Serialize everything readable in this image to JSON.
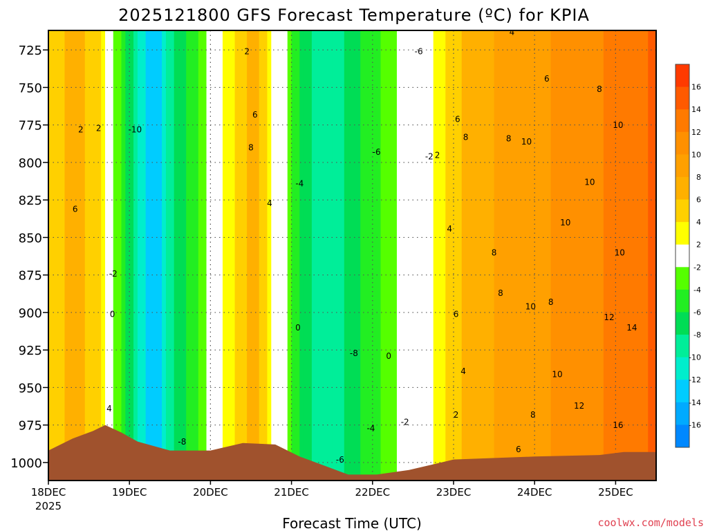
{
  "chart_data": {
    "type": "heatmap",
    "title": "2025121800 GFS Forecast Temperature (ºC) for KPIA",
    "xlabel": "Forecast Time (UTC)",
    "ylabel": "",
    "credit": "coolwx.com/models",
    "x_ticks": [
      "18DEC",
      "19DEC",
      "20DEC",
      "21DEC",
      "22DEC",
      "23DEC",
      "24DEC",
      "25DEC"
    ],
    "x_first_year": "2025",
    "xlim_days": [
      0,
      7.5
    ],
    "y_ticks": [
      725,
      750,
      775,
      800,
      825,
      850,
      875,
      900,
      925,
      950,
      975,
      1000
    ],
    "ylim_hpa": [
      1012,
      712
    ],
    "y_inverted": true,
    "grid": true,
    "colorbar": {
      "labels": [
        "16",
        "14",
        "12",
        "10",
        "8",
        "6",
        "4",
        "2",
        "-2",
        "-4",
        "-6",
        "-8",
        "-10",
        "-12",
        "-14",
        "-16"
      ],
      "colors": [
        "#ff3a00",
        "#ff5a00",
        "#ff7a00",
        "#ff9000",
        "#ffa000",
        "#ffb000",
        "#ffd000",
        "#ffff00",
        "#ffffff",
        "#55ff00",
        "#22ee22",
        "#00dd55",
        "#00ee99",
        "#00eecc",
        "#00ccff",
        "#00aaff",
        "#0088ff"
      ],
      "placement": "right"
    },
    "temperature_profile": [
      {
        "day": 0.1,
        "temp_c": 5
      },
      {
        "day": 0.35,
        "temp_c": 7
      },
      {
        "day": 0.65,
        "temp_c": 4
      },
      {
        "day": 0.85,
        "temp_c": -3
      },
      {
        "day": 1.1,
        "temp_c": -10
      },
      {
        "day": 1.3,
        "temp_c": -14
      },
      {
        "day": 1.55,
        "temp_c": -8
      },
      {
        "day": 1.85,
        "temp_c": -4
      },
      {
        "day": 2.05,
        "temp_c": 0
      },
      {
        "day": 2.35,
        "temp_c": 5
      },
      {
        "day": 2.55,
        "temp_c": 7
      },
      {
        "day": 2.8,
        "temp_c": 1
      },
      {
        "day": 3.05,
        "temp_c": -5
      },
      {
        "day": 3.35,
        "temp_c": -10
      },
      {
        "day": 3.65,
        "temp_c": -8
      },
      {
        "day": 3.95,
        "temp_c": -5
      },
      {
        "day": 4.2,
        "temp_c": -3
      },
      {
        "day": 4.45,
        "temp_c": 0
      },
      {
        "day": 4.7,
        "temp_c": 1
      },
      {
        "day": 4.95,
        "temp_c": 5
      },
      {
        "day": 5.3,
        "temp_c": 7
      },
      {
        "day": 5.75,
        "temp_c": 9
      },
      {
        "day": 6.2,
        "temp_c": 10
      },
      {
        "day": 6.65,
        "temp_c": 11
      },
      {
        "day": 7.05,
        "temp_c": 13
      },
      {
        "day": 7.4,
        "temp_c": 14
      }
    ],
    "terrain_surface_hpa": [
      {
        "day": 0.0,
        "hpa": 992
      },
      {
        "day": 0.3,
        "hpa": 984
      },
      {
        "day": 0.55,
        "hpa": 979
      },
      {
        "day": 0.7,
        "hpa": 975
      },
      {
        "day": 0.9,
        "hpa": 980
      },
      {
        "day": 1.1,
        "hpa": 986
      },
      {
        "day": 1.5,
        "hpa": 992
      },
      {
        "day": 2.0,
        "hpa": 992
      },
      {
        "day": 2.4,
        "hpa": 987
      },
      {
        "day": 2.8,
        "hpa": 988
      },
      {
        "day": 3.1,
        "hpa": 996
      },
      {
        "day": 3.4,
        "hpa": 1002
      },
      {
        "day": 3.7,
        "hpa": 1008
      },
      {
        "day": 4.05,
        "hpa": 1008
      },
      {
        "day": 4.45,
        "hpa": 1005
      },
      {
        "day": 5.0,
        "hpa": 998
      },
      {
        "day": 6.0,
        "hpa": 996
      },
      {
        "day": 6.8,
        "hpa": 995
      },
      {
        "day": 7.1,
        "hpa": 993
      },
      {
        "day": 7.5,
        "hpa": 993
      }
    ],
    "contour_labels": [
      {
        "text": "2",
        "day": 0.4,
        "hpa": 780
      },
      {
        "text": "6",
        "day": 0.33,
        "hpa": 833
      },
      {
        "text": "2",
        "day": 0.62,
        "hpa": 779
      },
      {
        "text": "-2",
        "day": 0.8,
        "hpa": 876
      },
      {
        "text": "0",
        "day": 0.79,
        "hpa": 903
      },
      {
        "text": "4",
        "day": 0.75,
        "hpa": 966
      },
      {
        "text": "-10",
        "day": 1.07,
        "hpa": 780
      },
      {
        "text": "-8",
        "day": 1.65,
        "hpa": 988
      },
      {
        "text": "2",
        "day": 2.45,
        "hpa": 728
      },
      {
        "text": "6",
        "day": 2.55,
        "hpa": 770
      },
      {
        "text": "8",
        "day": 2.5,
        "hpa": 792
      },
      {
        "text": "4",
        "day": 2.73,
        "hpa": 829
      },
      {
        "text": "0",
        "day": 3.08,
        "hpa": 912
      },
      {
        "text": "-4",
        "day": 3.1,
        "hpa": 816
      },
      {
        "text": "-6",
        "day": 4.05,
        "hpa": 795
      },
      {
        "text": "-8",
        "day": 3.77,
        "hpa": 929
      },
      {
        "text": "-4",
        "day": 3.98,
        "hpa": 979
      },
      {
        "text": "-6",
        "day": 3.6,
        "hpa": 1000
      },
      {
        "text": "0",
        "day": 4.2,
        "hpa": 931
      },
      {
        "text": "-2",
        "day": 4.4,
        "hpa": 975
      },
      {
        "text": "-2",
        "day": 4.7,
        "hpa": 798
      },
      {
        "text": "2",
        "day": 4.8,
        "hpa": 797
      },
      {
        "text": "-6",
        "day": 4.57,
        "hpa": 728
      },
      {
        "text": "4",
        "day": 4.95,
        "hpa": 846
      },
      {
        "text": "6",
        "day": 5.05,
        "hpa": 773
      },
      {
        "text": "8",
        "day": 5.15,
        "hpa": 785
      },
      {
        "text": "6",
        "day": 5.03,
        "hpa": 903
      },
      {
        "text": "4",
        "day": 5.12,
        "hpa": 941
      },
      {
        "text": "2",
        "day": 5.03,
        "hpa": 970
      },
      {
        "text": "6",
        "day": 5.8,
        "hpa": 993
      },
      {
        "text": "8",
        "day": 5.68,
        "hpa": 786
      },
      {
        "text": "10",
        "day": 5.9,
        "hpa": 788
      },
      {
        "text": "8",
        "day": 5.5,
        "hpa": 862
      },
      {
        "text": "8",
        "day": 5.58,
        "hpa": 889
      },
      {
        "text": "10",
        "day": 5.95,
        "hpa": 898
      },
      {
        "text": "8",
        "day": 6.2,
        "hpa": 895
      },
      {
        "text": "10",
        "day": 6.28,
        "hpa": 943
      },
      {
        "text": "8",
        "day": 5.98,
        "hpa": 970
      },
      {
        "text": "12",
        "day": 6.55,
        "hpa": 964
      },
      {
        "text": "10",
        "day": 6.38,
        "hpa": 842
      },
      {
        "text": "10",
        "day": 6.68,
        "hpa": 815
      },
      {
        "text": "10",
        "day": 7.05,
        "hpa": 862
      },
      {
        "text": "10",
        "day": 7.03,
        "hpa": 777
      },
      {
        "text": "8",
        "day": 6.8,
        "hpa": 753
      },
      {
        "text": "6",
        "day": 6.15,
        "hpa": 746
      },
      {
        "text": "4",
        "day": 5.72,
        "hpa": 715
      },
      {
        "text": "12",
        "day": 6.92,
        "hpa": 905
      },
      {
        "text": "14",
        "day": 7.2,
        "hpa": 912
      },
      {
        "text": "16",
        "day": 7.03,
        "hpa": 977
      }
    ]
  }
}
